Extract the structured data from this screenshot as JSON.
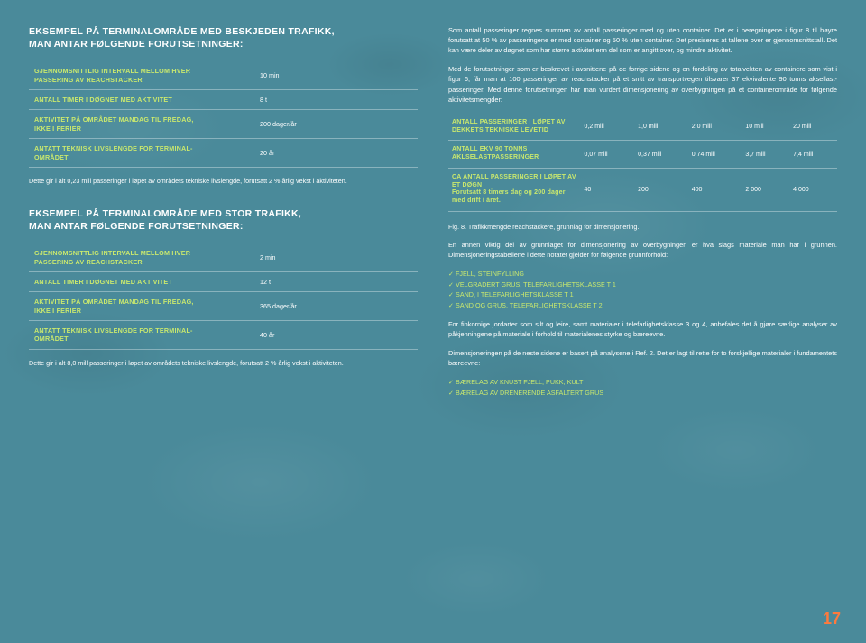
{
  "colors": {
    "bg": "#4a8a9a",
    "accent": "#c9e86e",
    "text": "#ffffff",
    "pagenum": "#ff7a3d",
    "rule": "rgba(255,255,255,0.35)"
  },
  "left": {
    "ex1": {
      "heading": "EKSEMPEL PÅ TERMINALOMRÅDE MED BESKJEDEN TRAFIKK,\nMAN ANTAR FØLGENDE FORUTSETNINGER:",
      "rows": [
        {
          "label": "GJENNOMSNITTLIG INTERVALL MELLOM HVER\nPASSERING AV REACHSTACKER",
          "value": "10 min"
        },
        {
          "label": "ANTALL TIMER I DØGNET MED AKTIVITET",
          "value": "8 t"
        },
        {
          "label": "AKTIVITET PÅ OMRÅDET MANDAG TIL FREDAG,\nIKKE I FERIER",
          "value": "200 dager/år"
        },
        {
          "label": "ANTATT TEKNISK LIVSLENGDE FOR TERMINAL-\nOMRÅDET",
          "value": "20 år"
        }
      ],
      "note": "Dette gir i alt 0,23 mill passeringer i løpet av områdets tekniske livslengde, forutsatt 2 % årlig vekst i aktiviteten."
    },
    "ex2": {
      "heading": "EKSEMPEL PÅ TERMINALOMRÅDE MED STOR TRAFIKK,\nMAN ANTAR FØLGENDE FORUTSETNINGER:",
      "rows": [
        {
          "label": "GJENNOMSNITTLIG INTERVALL MELLOM HVER\nPASSERING AV REACHSTACKER",
          "value": "2 min"
        },
        {
          "label": "ANTALL TIMER I DØGNET MED AKTIVITET",
          "value": "12 t"
        },
        {
          "label": "AKTIVITET PÅ OMRÅDET MANDAG TIL FREDAG,\nIKKE I FERIER",
          "value": "365 dager/år"
        },
        {
          "label": "ANTATT TEKNISK LIVSLENGDE FOR TERMINAL-\nOMRÅDET",
          "value": "40 år"
        }
      ],
      "note": "Dette gir i alt 8,0 mill passeringer i løpet av områdets tekniske livslengde, forutsatt 2 % årlig vekst i aktiviteten."
    }
  },
  "right": {
    "p1": "Som antall passeringer regnes summen av antall passeringer med og uten container. Det er i beregningene i figur 8 til høyre forutsatt at 50 % av passeringene er med container og 50 % uten container. Det presiseres at tallene over er gjennomsnittstall. Det kan være deler av døgnet som har større aktivitet enn del som er angitt over, og mindre aktivitet.",
    "p2": "Med de forutsetninger som er beskrevet i avsnittene på de forrige sidene og en fordeling av totalvekten av containere som vist i figur 6, får man at 100 passeringer av reachstacker på et snitt av transportvegen tilsvarer 37 ekvivalente 90 tonns aksellast-passeringer. Med denne forutsetningen har man vurdert dimensjonering av overbygningen på et containerområde for følgende aktivitetsmengder:",
    "table": {
      "rows": [
        {
          "label": "ANTALL PASSERINGER I LØPET AV\nDEKKETS TEKNISKE LEVETID",
          "sub": "",
          "cells": [
            "0,2 mill",
            "1,0 mill",
            "2,0 mill",
            "10 mill",
            "20 mill"
          ]
        },
        {
          "label": "ANTALL EKV 90 TONNS\nAKLSELASTPASSERINGER",
          "sub": "",
          "cells": [
            "0,07 mill",
            "0,37 mill",
            "0,74 mill",
            "3,7 mill",
            "7,4 mill"
          ]
        },
        {
          "label": "CA ANTALL PASSERINGER I LØPET AV\nET DØGN",
          "sub": "Forutsatt 8 timers dag og 200 dager med drift i året.",
          "cells": [
            "40",
            "200",
            "400",
            "2 000",
            "4 000"
          ]
        }
      ]
    },
    "caption": "Fig. 8. Trafikkmengde reachstackere, grunnlag for dimensjonering.",
    "p3": "En annen viktig del av grunnlaget for dimensjonering av overbygningen er hva slags materiale man har i grunnen. Dimensjoneringstabellene i dette notatet gjelder for følgende grunnforhold:",
    "checks1": [
      "FJELL, STEINFYLLING",
      "VELGRADERT GRUS, TELEFARLIGHETSKLASSE T 1",
      "SAND, I TELEFARLIGHETSKLASSE T 1",
      "SAND OG GRUS, TELEFARLIGHETSKLASSE T 2"
    ],
    "p4": "For finkornige jordarter som silt og leire, samt materialer i telefarlighetsklasse 3 og 4, anbefales det å gjøre særlige analyser av påkjenningene på materiale i forhold til materialenes styrke og bæreevne.",
    "p5": "Dimensjoneringen på de neste sidene er basert på analysene i Ref. 2. Det er lagt til rette for to forskjellige materialer i fundamentets bæreevne:",
    "checks2": [
      "BÆRELAG AV KNUST FJELL, PUKK, KULT",
      "BÆRELAG AV DRENERENDE ASFALTERT GRUS"
    ]
  },
  "pagenum": "17"
}
